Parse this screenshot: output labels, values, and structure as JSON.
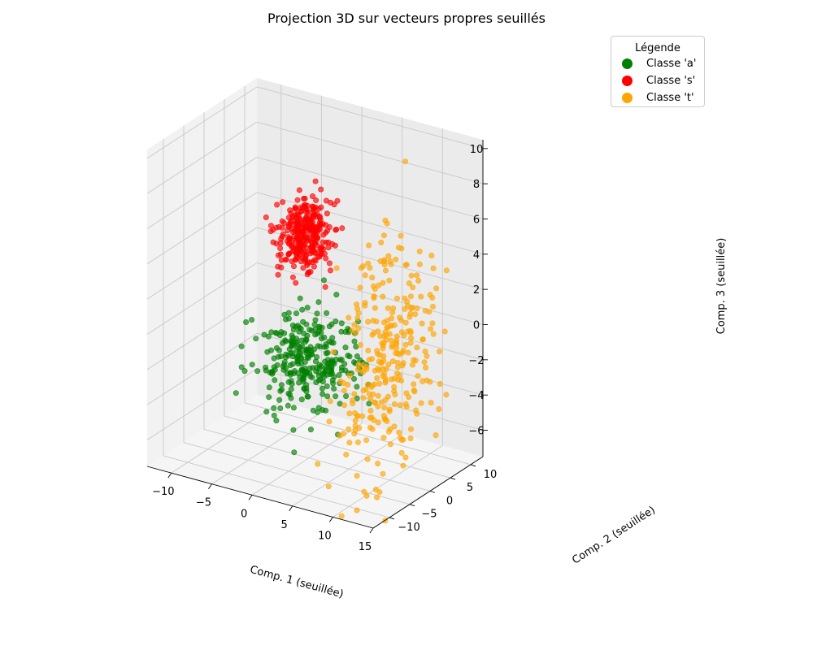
{
  "chart_data": {
    "type": "scatter",
    "projection": "3d",
    "title": "Projection 3D sur vecteurs propres seuillés",
    "xlabel": "Comp. 1 (seuillée)",
    "ylabel": "Comp. 2 (seuillée)",
    "zlabel": "Comp. 3 (seuillée)",
    "xlim": [
      -13,
      15
    ],
    "ylim": [
      -14,
      13
    ],
    "zlim": [
      -7.5,
      10.5
    ],
    "xticks": [
      "−10",
      "−5",
      "0",
      "5",
      "10",
      "15"
    ],
    "yticks": [
      "−10",
      "−5",
      "0",
      "5",
      "10"
    ],
    "zticks": [
      "−6",
      "−4",
      "−2",
      "0",
      "2",
      "4",
      "6",
      "8",
      "10"
    ],
    "grid": true,
    "legend": {
      "title": "Légende",
      "placement": "upper right"
    },
    "series": [
      {
        "name": "Classe 'a'",
        "color": "#008000",
        "count": 300,
        "center": [
          0,
          0,
          -2
        ],
        "spread": [
          2.6,
          3.5,
          1.4
        ]
      },
      {
        "name": "Classe 's'",
        "color": "#ff0000",
        "count": 300,
        "center": [
          -3,
          5,
          4
        ],
        "spread": [
          1.3,
          2.4,
          0.9
        ]
      },
      {
        "name": "Classe 't'",
        "color": "#ffa500",
        "count": 300,
        "center": [
          9,
          2,
          -1
        ],
        "spread": [
          1.4,
          5.5,
          3.3
        ]
      }
    ]
  }
}
